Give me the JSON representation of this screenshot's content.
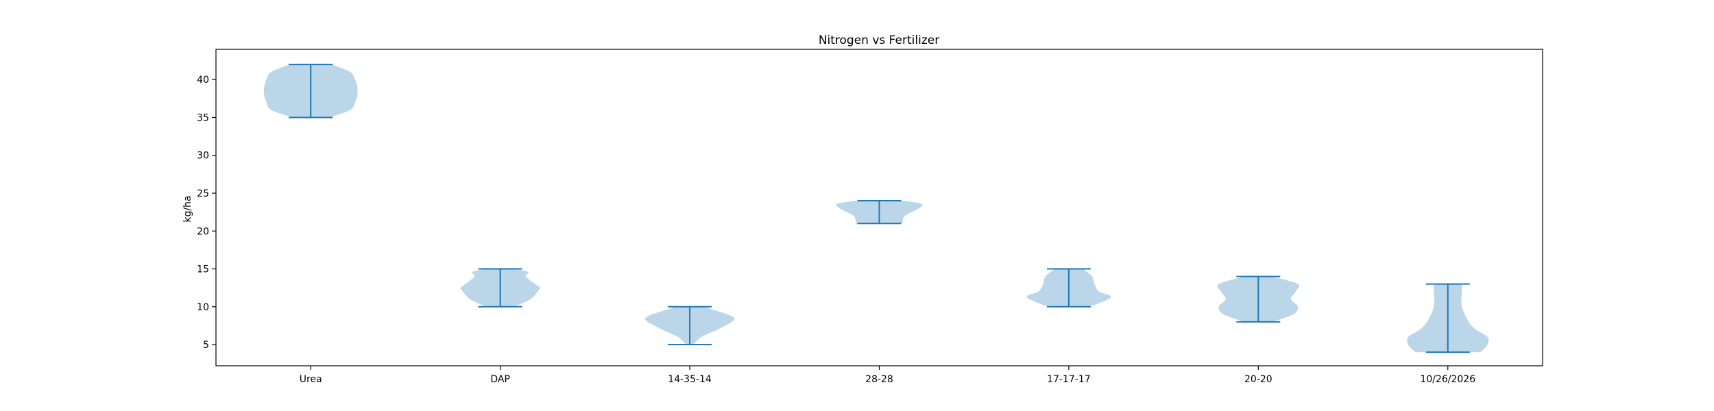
{
  "chart_data": {
    "type": "violin",
    "title": "Nitrogen vs Fertilizer",
    "xlabel": "",
    "ylabel": "kg/ha",
    "ylim": [
      2.2,
      44.0
    ],
    "yticks": [
      5,
      10,
      15,
      20,
      25,
      30,
      35,
      40
    ],
    "grid": false,
    "colors": {
      "fill": "#1f77b4",
      "fill_opacity": 0.3,
      "line": "#1f77b4"
    },
    "categories": [
      "Urea",
      "DAP",
      "14-35-14",
      "28-28",
      "17-17-17",
      "20-20",
      "10/26/2026"
    ],
    "series": [
      {
        "min": 35,
        "max": 42,
        "profile": [
          [
            35,
            0.4
          ],
          [
            36,
            0.85
          ],
          [
            37,
            0.95
          ],
          [
            38,
            1.0
          ],
          [
            39,
            1.0
          ],
          [
            40,
            0.95
          ],
          [
            41,
            0.85
          ],
          [
            42,
            0.45
          ]
        ]
      },
      {
        "min": 10,
        "max": 15,
        "profile": [
          [
            10,
            0.3
          ],
          [
            11,
            0.65
          ],
          [
            12,
            0.8
          ],
          [
            12.5,
            0.85
          ],
          [
            13,
            0.75
          ],
          [
            14,
            0.55
          ],
          [
            14.6,
            0.6
          ],
          [
            15,
            0.3
          ]
        ]
      },
      {
        "min": 5,
        "max": 10,
        "profile": [
          [
            5,
            0.08
          ],
          [
            6,
            0.25
          ],
          [
            7,
            0.6
          ],
          [
            8,
            0.9
          ],
          [
            8.5,
            0.95
          ],
          [
            9,
            0.8
          ],
          [
            10,
            0.3
          ]
        ]
      },
      {
        "min": 21,
        "max": 24,
        "profile": [
          [
            21,
            0.5
          ],
          [
            22,
            0.55
          ],
          [
            23,
            0.85
          ],
          [
            23.6,
            0.9
          ],
          [
            24,
            0.5
          ]
        ]
      },
      {
        "min": 10,
        "max": 15,
        "profile": [
          [
            10,
            0.45
          ],
          [
            11,
            0.85
          ],
          [
            11.5,
            0.88
          ],
          [
            12,
            0.65
          ],
          [
            13,
            0.55
          ],
          [
            14,
            0.5
          ],
          [
            15,
            0.3
          ]
        ]
      },
      {
        "min": 8,
        "max": 14,
        "profile": [
          [
            8,
            0.3
          ],
          [
            9,
            0.75
          ],
          [
            10,
            0.85
          ],
          [
            11,
            0.7
          ],
          [
            12,
            0.8
          ],
          [
            13,
            0.85
          ],
          [
            14,
            0.3
          ]
        ]
      },
      {
        "min": 4,
        "max": 13,
        "profile": [
          [
            4,
            0.7
          ],
          [
            5,
            0.85
          ],
          [
            6,
            0.85
          ],
          [
            7,
            0.6
          ],
          [
            8,
            0.45
          ],
          [
            10,
            0.3
          ],
          [
            12,
            0.3
          ],
          [
            13,
            0.3
          ]
        ]
      }
    ]
  }
}
